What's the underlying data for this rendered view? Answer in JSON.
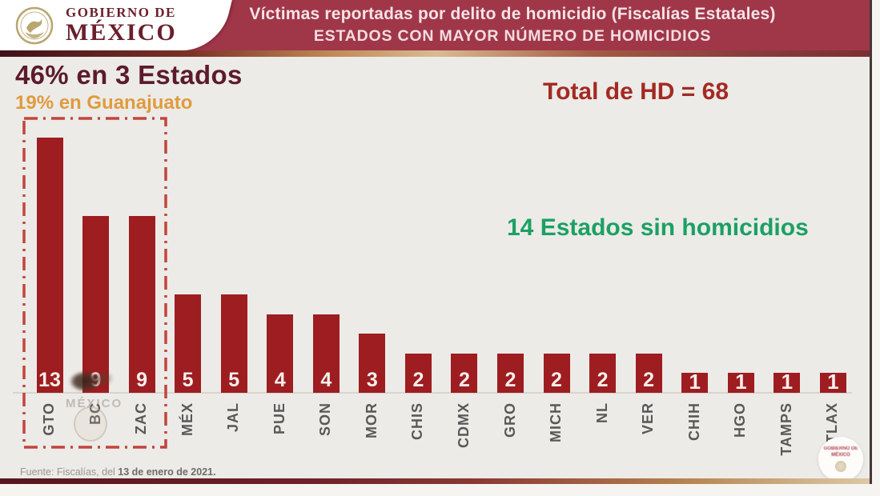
{
  "header": {
    "logo_line1": "GOBIERNO DE",
    "logo_line2": "MÉXICO",
    "title": "Víctimas reportadas por delito de homicidio (Fiscalías Estatales)",
    "subtitle": "ESTADOS CON MAYOR NÚMERO DE HOMICIDIOS"
  },
  "annotations": {
    "headline": "46% en 3 Estados",
    "subheadline": "19% en Guanajuato",
    "total_note": "Total de HD = 68",
    "zero_states_note": "14 Estados sin homicidios"
  },
  "chart_data": {
    "type": "bar",
    "title": "Estados con mayor número de homicidios",
    "categories": [
      "GTO",
      "BC",
      "ZAC",
      "MÉX",
      "JAL",
      "PUE",
      "SON",
      "MOR",
      "CHIS",
      "CDMX",
      "GRO",
      "MICH",
      "NL",
      "VER",
      "CHIH",
      "HGO",
      "TAMPS",
      "TLAX"
    ],
    "values": [
      13,
      9,
      9,
      5,
      5,
      4,
      4,
      3,
      2,
      2,
      2,
      2,
      2,
      2,
      1,
      1,
      1,
      1
    ],
    "total": 68,
    "ylim": [
      0,
      13
    ],
    "grid": false,
    "bar_color": "#9e1d20",
    "value_label_color": "#f6efec",
    "highlight_box_categories": [
      "GTO",
      "BC",
      "ZAC"
    ],
    "highlight_box_color": "#c2453a"
  },
  "watermark": {
    "label": "MÉXICO"
  },
  "footer": {
    "source_prefix": "Fuente: Fiscalías, del ",
    "source_date": "13 de enero de 2021.",
    "badge_line1": "GOBIERNO DE",
    "badge_line2": "MÉXICO"
  },
  "colors": {
    "header_bg": "#a03749",
    "headline": "#5c1b2c",
    "subheadline": "#e09b3e",
    "total_note": "#a32a22",
    "zero_note": "#1ca064",
    "background": "#ecebe8",
    "axis_label": "#595757"
  }
}
